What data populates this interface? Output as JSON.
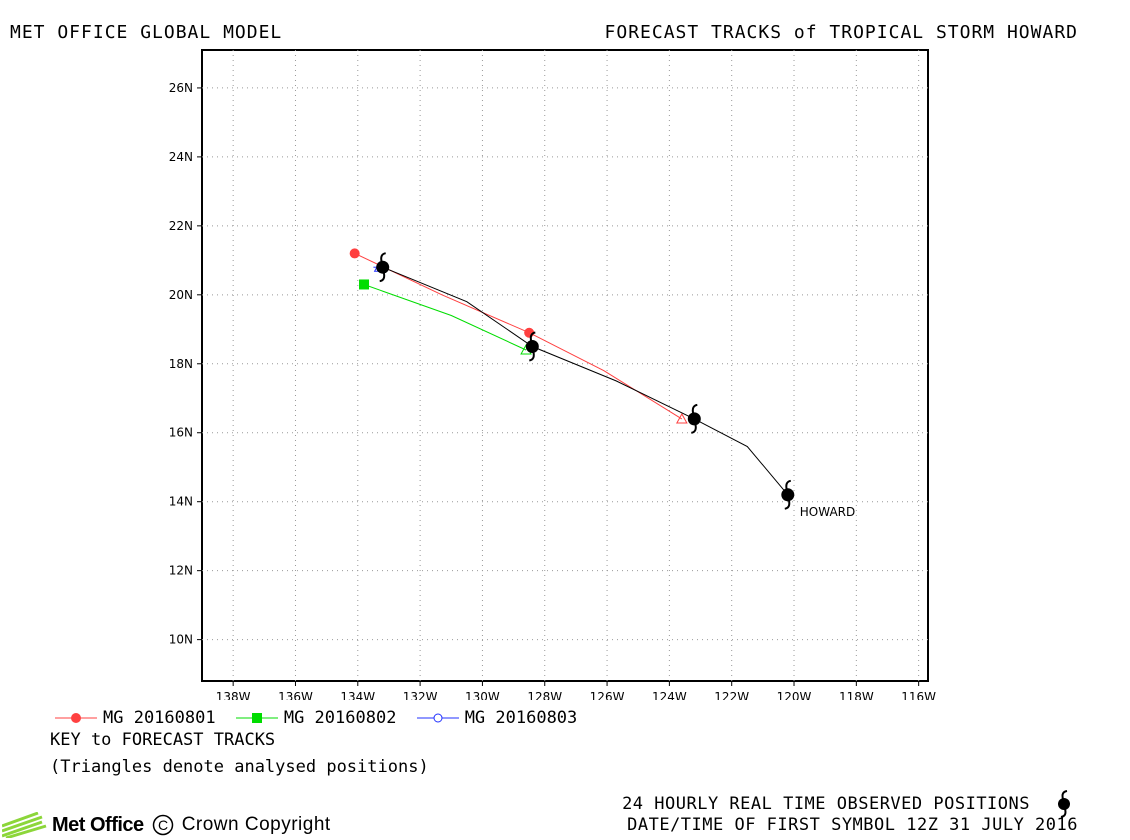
{
  "header": {
    "left": "MET OFFICE GLOBAL MODEL",
    "right": "FORECAST TRACKS of TROPICAL STORM HOWARD"
  },
  "legend": {
    "items": [
      {
        "label": "MG 20160801",
        "color": "#ff4040",
        "marker": "circle-filled"
      },
      {
        "label": "MG 20160802",
        "color": "#00dd00",
        "marker": "square-filled"
      },
      {
        "label": "MG 20160803",
        "color": "#2030ff",
        "marker": "circle-open"
      }
    ],
    "key_title": "KEY to FORECAST TRACKS",
    "key_note": "(Triangles denote analysed positions)"
  },
  "footer": {
    "observed": "24 HOURLY REAL TIME OBSERVED POSITIONS",
    "datetime": "DATE/TIME OF FIRST SYMBOL 12Z 31 JULY 2016",
    "brand": "Met Office",
    "copyright": "Crown Copyright"
  },
  "chart_data": {
    "type": "map-track",
    "x_ticks": [
      "138W",
      "136W",
      "134W",
      "132W",
      "130W",
      "128W",
      "126W",
      "124W",
      "122W",
      "120W",
      "118W",
      "116W"
    ],
    "y_ticks": [
      "10N",
      "12N",
      "14N",
      "16N",
      "18N",
      "20N",
      "22N",
      "24N",
      "26N"
    ],
    "xlim": [
      -139,
      -115.7
    ],
    "ylim": [
      8.8,
      27.1
    ],
    "grid": true,
    "observed": {
      "name": "HOWARD",
      "color": "#000000",
      "track": [
        [
          -120.2,
          14.2
        ],
        [
          -121.5,
          15.6
        ],
        [
          -123.2,
          16.4
        ],
        [
          -125.7,
          17.5
        ],
        [
          -128.4,
          18.5
        ],
        [
          -130.5,
          19.8
        ],
        [
          -133.2,
          20.8
        ]
      ],
      "symbols": [
        [
          -120.2,
          14.2
        ],
        [
          -123.2,
          16.4
        ],
        [
          -128.4,
          18.5
        ],
        [
          -133.2,
          20.8
        ]
      ]
    },
    "forecasts": [
      {
        "name": "MG 20160801",
        "color": "#ff4040",
        "marker": "circle-filled",
        "track": [
          [
            -123.6,
            16.4
          ],
          [
            -126.1,
            17.8
          ],
          [
            -128.5,
            18.9
          ],
          [
            -131.3,
            20.0
          ],
          [
            -134.1,
            21.2
          ]
        ],
        "start": [
          -123.6,
          16.4
        ],
        "points": [
          [
            -128.5,
            18.9
          ],
          [
            -134.1,
            21.2
          ]
        ]
      },
      {
        "name": "MG 20160802",
        "color": "#00dd00",
        "marker": "square-filled",
        "track": [
          [
            -128.6,
            18.4
          ],
          [
            -131.0,
            19.4
          ],
          [
            -133.8,
            20.3
          ]
        ],
        "start": [
          -128.6,
          18.4
        ],
        "points": [
          [
            -133.8,
            20.3
          ]
        ]
      },
      {
        "name": "MG 20160803",
        "color": "#2030ff",
        "marker": "circle-open",
        "track": [
          [
            -133.3,
            20.8
          ],
          [
            -133.5,
            20.8
          ]
        ],
        "start": [
          -133.3,
          20.8
        ],
        "points": []
      }
    ],
    "storm_label": "HOWARD"
  }
}
